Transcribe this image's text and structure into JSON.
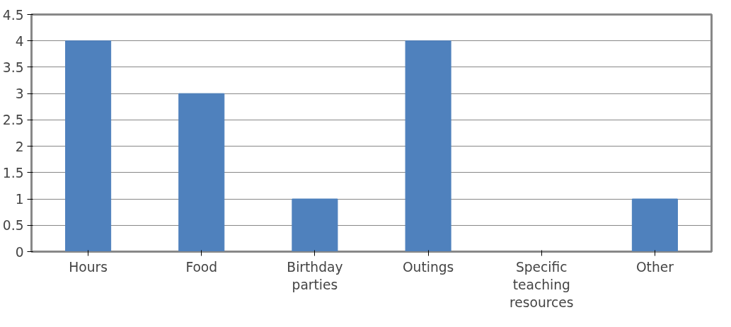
{
  "chart_data": {
    "type": "bar",
    "categories": [
      "Hours",
      "Food",
      "Birthday parties",
      "Outings",
      "Specific teaching resources",
      "Other"
    ],
    "values": [
      4,
      3,
      1,
      4,
      0,
      1
    ],
    "color": "#4f81bd",
    "ylim": [
      0,
      4.5
    ],
    "yticks": [
      0,
      0.5,
      1,
      1.5,
      2,
      2.5,
      3,
      3.5,
      4,
      4.5
    ],
    "grid": "y"
  }
}
